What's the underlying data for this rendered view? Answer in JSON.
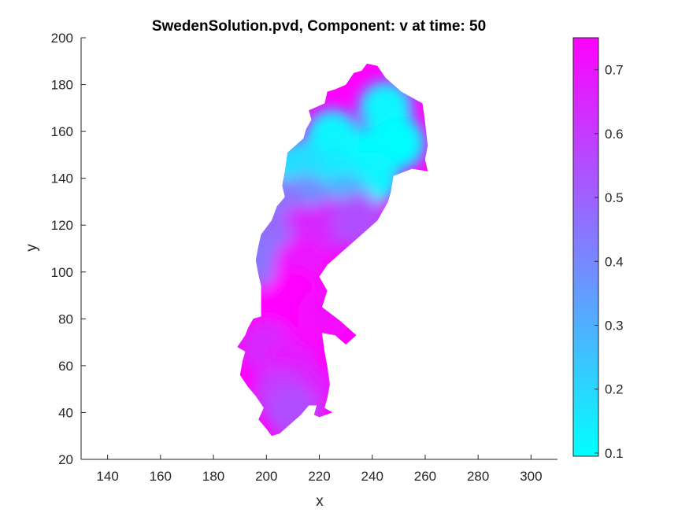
{
  "chart_data": {
    "type": "heatmap",
    "title": "SwedenSolution.pvd, Component: v at time: 50",
    "xlabel": "x",
    "ylabel": "y",
    "xlim": [
      130,
      310
    ],
    "ylim": [
      20,
      200
    ],
    "xticks": [
      140,
      160,
      180,
      200,
      220,
      240,
      260,
      280,
      300
    ],
    "yticks": [
      20,
      40,
      60,
      80,
      100,
      120,
      140,
      160,
      180,
      200
    ],
    "colorbar": {
      "ticks": [
        0.1,
        0.2,
        0.3,
        0.4,
        0.5,
        0.6,
        0.7
      ],
      "range": [
        0.095,
        0.75
      ],
      "colors": [
        "#00ffff",
        "#ff00ff"
      ]
    },
    "grid": false,
    "outline": [
      [
        242,
        188
      ],
      [
        245,
        183
      ],
      [
        251,
        177
      ],
      [
        259,
        172
      ],
      [
        260,
        164
      ],
      [
        261,
        154
      ],
      [
        260,
        148
      ],
      [
        261,
        143
      ],
      [
        255,
        144
      ],
      [
        248,
        141
      ],
      [
        247,
        134
      ],
      [
        246,
        130
      ],
      [
        242,
        122
      ],
      [
        238,
        118
      ],
      [
        230,
        110
      ],
      [
        223,
        103
      ],
      [
        220,
        98
      ],
      [
        223,
        92
      ],
      [
        221,
        85
      ],
      [
        228,
        79
      ],
      [
        234,
        73
      ],
      [
        230,
        69
      ],
      [
        226,
        73
      ],
      [
        221,
        74
      ],
      [
        222,
        66
      ],
      [
        223,
        60
      ],
      [
        224,
        52
      ],
      [
        223,
        46
      ],
      [
        222,
        42
      ],
      [
        225,
        40
      ],
      [
        220,
        38
      ],
      [
        218,
        39
      ],
      [
        219,
        43
      ],
      [
        216,
        43
      ],
      [
        213,
        39
      ],
      [
        210,
        36
      ],
      [
        207,
        33
      ],
      [
        205,
        31
      ],
      [
        202,
        30
      ],
      [
        200,
        33
      ],
      [
        197,
        37
      ],
      [
        199,
        42
      ],
      [
        196,
        47
      ],
      [
        193,
        51
      ],
      [
        190,
        56
      ],
      [
        191,
        62
      ],
      [
        192,
        66
      ],
      [
        189,
        68
      ],
      [
        192,
        73
      ],
      [
        193,
        76
      ],
      [
        195,
        80
      ],
      [
        198,
        81
      ],
      [
        198,
        88
      ],
      [
        198,
        94
      ],
      [
        197,
        99
      ],
      [
        196,
        105
      ],
      [
        197,
        111
      ],
      [
        198,
        116
      ],
      [
        202,
        122
      ],
      [
        204,
        128
      ],
      [
        207,
        132
      ],
      [
        206,
        137
      ],
      [
        207,
        143
      ],
      [
        208,
        151
      ],
      [
        214,
        157
      ],
      [
        215,
        161
      ],
      [
        217,
        165
      ],
      [
        216,
        169
      ],
      [
        222,
        172
      ],
      [
        223,
        177
      ],
      [
        226,
        178
      ],
      [
        230,
        180
      ],
      [
        233,
        185
      ],
      [
        236,
        186
      ],
      [
        238,
        189
      ]
    ],
    "samples": [
      [
        245,
        170,
        0.12
      ],
      [
        250,
        155,
        0.1
      ],
      [
        235,
        150,
        0.1
      ],
      [
        225,
        158,
        0.12
      ],
      [
        240,
        140,
        0.12
      ],
      [
        225,
        140,
        0.15
      ],
      [
        212,
        145,
        0.18
      ],
      [
        230,
        130,
        0.3
      ],
      [
        215,
        130,
        0.38
      ],
      [
        205,
        128,
        0.45
      ],
      [
        225,
        120,
        0.62
      ],
      [
        235,
        122,
        0.55
      ],
      [
        214,
        117,
        0.65
      ],
      [
        200,
        114,
        0.48
      ],
      [
        198,
        105,
        0.45
      ],
      [
        213,
        103,
        0.7
      ],
      [
        210,
        90,
        0.75
      ],
      [
        205,
        80,
        0.75
      ],
      [
        222,
        82,
        0.72
      ],
      [
        200,
        68,
        0.65
      ],
      [
        210,
        60,
        0.68
      ],
      [
        215,
        50,
        0.66
      ],
      [
        205,
        48,
        0.6
      ],
      [
        210,
        40,
        0.55
      ]
    ]
  }
}
